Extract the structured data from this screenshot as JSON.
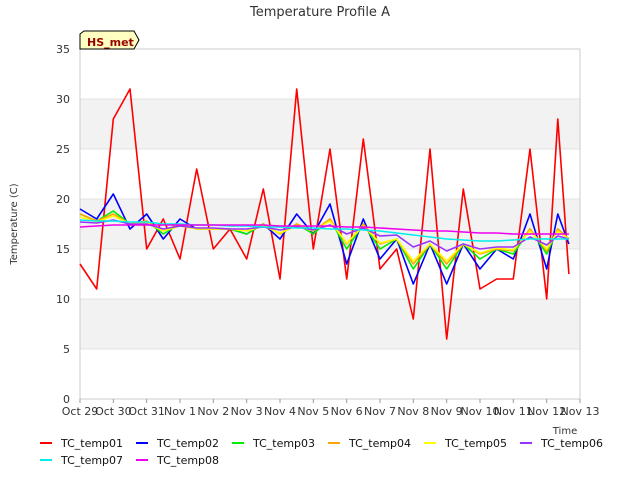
{
  "chart_data": {
    "type": "line",
    "title": "Temperature Profile A",
    "xlabel": "Time",
    "ylabel": "Temperature (C)",
    "ylim": [
      0,
      35
    ],
    "yticks": [
      0,
      5,
      10,
      15,
      20,
      25,
      30,
      35
    ],
    "xlim": [
      "2023-10-29",
      "2023-11-13"
    ],
    "xtick_labels": [
      "Oct 29",
      "Oct 30",
      "Oct 31",
      "Nov 1",
      "Nov 2",
      "Nov 3",
      "Nov 4",
      "Nov 5",
      "Nov 6",
      "Nov 7",
      "Nov 8",
      "Nov 9",
      "Nov 10",
      "Nov 11",
      "Nov 12",
      "Nov 13"
    ],
    "grid": "horizontal bands",
    "legend_position": "bottom",
    "annotation": "HS_met",
    "x": [
      "2023-10-29",
      "2023-10-29",
      "2023-10-30",
      "2023-10-30",
      "2023-10-31",
      "2023-10-31",
      "2023-11-01",
      "2023-11-01",
      "2023-11-02",
      "2023-11-02",
      "2023-11-03",
      "2023-11-03",
      "2023-11-04",
      "2023-11-04",
      "2023-11-05",
      "2023-11-05",
      "2023-11-06",
      "2023-11-06",
      "2023-11-07",
      "2023-11-07",
      "2023-11-08",
      "2023-11-08",
      "2023-11-09",
      "2023-11-09",
      "2023-11-10",
      "2023-11-10",
      "2023-11-11",
      "2023-11-11",
      "2023-11-12",
      "2023-11-12",
      "2023-11-12"
    ],
    "series": [
      {
        "name": "TC_temp01",
        "color": "#ff0000",
        "values": [
          13.5,
          11,
          28,
          31,
          15,
          18,
          14,
          23,
          15,
          17,
          14,
          21,
          12,
          31,
          15,
          25,
          12,
          26,
          13,
          15,
          8,
          25,
          6,
          21,
          11,
          12,
          12,
          25,
          10,
          28,
          12.5
        ]
      },
      {
        "name": "TC_temp02",
        "color": "#0000ff",
        "values": [
          19,
          18,
          20.5,
          17,
          18.5,
          16,
          18,
          17,
          17,
          17,
          16.5,
          17.5,
          16,
          18.5,
          16.5,
          19.5,
          13.5,
          18,
          14,
          16,
          11.5,
          15.5,
          11.5,
          15.5,
          13,
          15,
          14,
          18.5,
          13,
          18.5,
          15.5
        ]
      },
      {
        "name": "TC_temp03",
        "color": "#00ee00",
        "values": [
          18.5,
          17.8,
          18.8,
          17.5,
          17.8,
          16.5,
          17.5,
          17,
          17,
          17,
          16.5,
          17.5,
          16.5,
          17.5,
          16.5,
          18,
          15,
          17.5,
          15,
          16,
          13,
          15.5,
          13,
          15.5,
          14,
          15,
          14.5,
          17,
          14.5,
          17,
          16
        ]
      },
      {
        "name": "TC_temp04",
        "color": "#ffa500",
        "values": [
          18.5,
          17.8,
          18.5,
          17.5,
          17.8,
          16.8,
          17.5,
          17,
          17,
          17,
          16.8,
          17.5,
          16.5,
          17.5,
          16.8,
          18,
          15.5,
          17.5,
          15.5,
          16,
          13.5,
          15.5,
          13.5,
          15.5,
          14.5,
          15,
          14.8,
          17,
          14.8,
          17,
          16
        ]
      },
      {
        "name": "TC_temp05",
        "color": "#ffff00",
        "values": [
          18.2,
          17.7,
          18.3,
          17.5,
          17.6,
          16.8,
          17.3,
          17,
          17,
          17,
          16.8,
          17.3,
          16.6,
          17.3,
          16.8,
          17.8,
          15.6,
          17.3,
          15.6,
          16,
          13.8,
          15.5,
          13.8,
          15.5,
          14.6,
          15.1,
          14.9,
          16.8,
          15,
          16.8,
          16
        ]
      },
      {
        "name": "TC_temp06",
        "color": "#9933ff",
        "values": [
          17.7,
          17.6,
          17.9,
          17.5,
          17.5,
          17,
          17.3,
          17.1,
          17.1,
          17,
          17,
          17.2,
          16.9,
          17.2,
          16.9,
          17.4,
          16.5,
          17.1,
          16.3,
          16.4,
          15.2,
          15.8,
          14.8,
          15.5,
          15,
          15.2,
          15.2,
          16.2,
          15.4,
          16.3,
          16
        ]
      },
      {
        "name": "TC_temp07",
        "color": "#00eeee",
        "values": [
          17.9,
          17.8,
          17.8,
          17.7,
          17.7,
          17.5,
          17.5,
          17.4,
          17.4,
          17.3,
          17.3,
          17.2,
          17.2,
          17.1,
          17.1,
          17,
          17,
          16.9,
          16.8,
          16.6,
          16.4,
          16.2,
          16,
          15.9,
          15.8,
          15.8,
          15.9,
          16,
          16,
          16,
          16
        ]
      },
      {
        "name": "TC_temp08",
        "color": "#ee00ee",
        "values": [
          17.2,
          17.3,
          17.4,
          17.4,
          17.4,
          17.4,
          17.4,
          17.4,
          17.4,
          17.4,
          17.4,
          17.4,
          17.3,
          17.3,
          17.3,
          17.3,
          17.2,
          17.2,
          17.1,
          17,
          16.9,
          16.8,
          16.8,
          16.7,
          16.6,
          16.6,
          16.5,
          16.5,
          16.5,
          16.5,
          16.5
        ]
      }
    ]
  }
}
